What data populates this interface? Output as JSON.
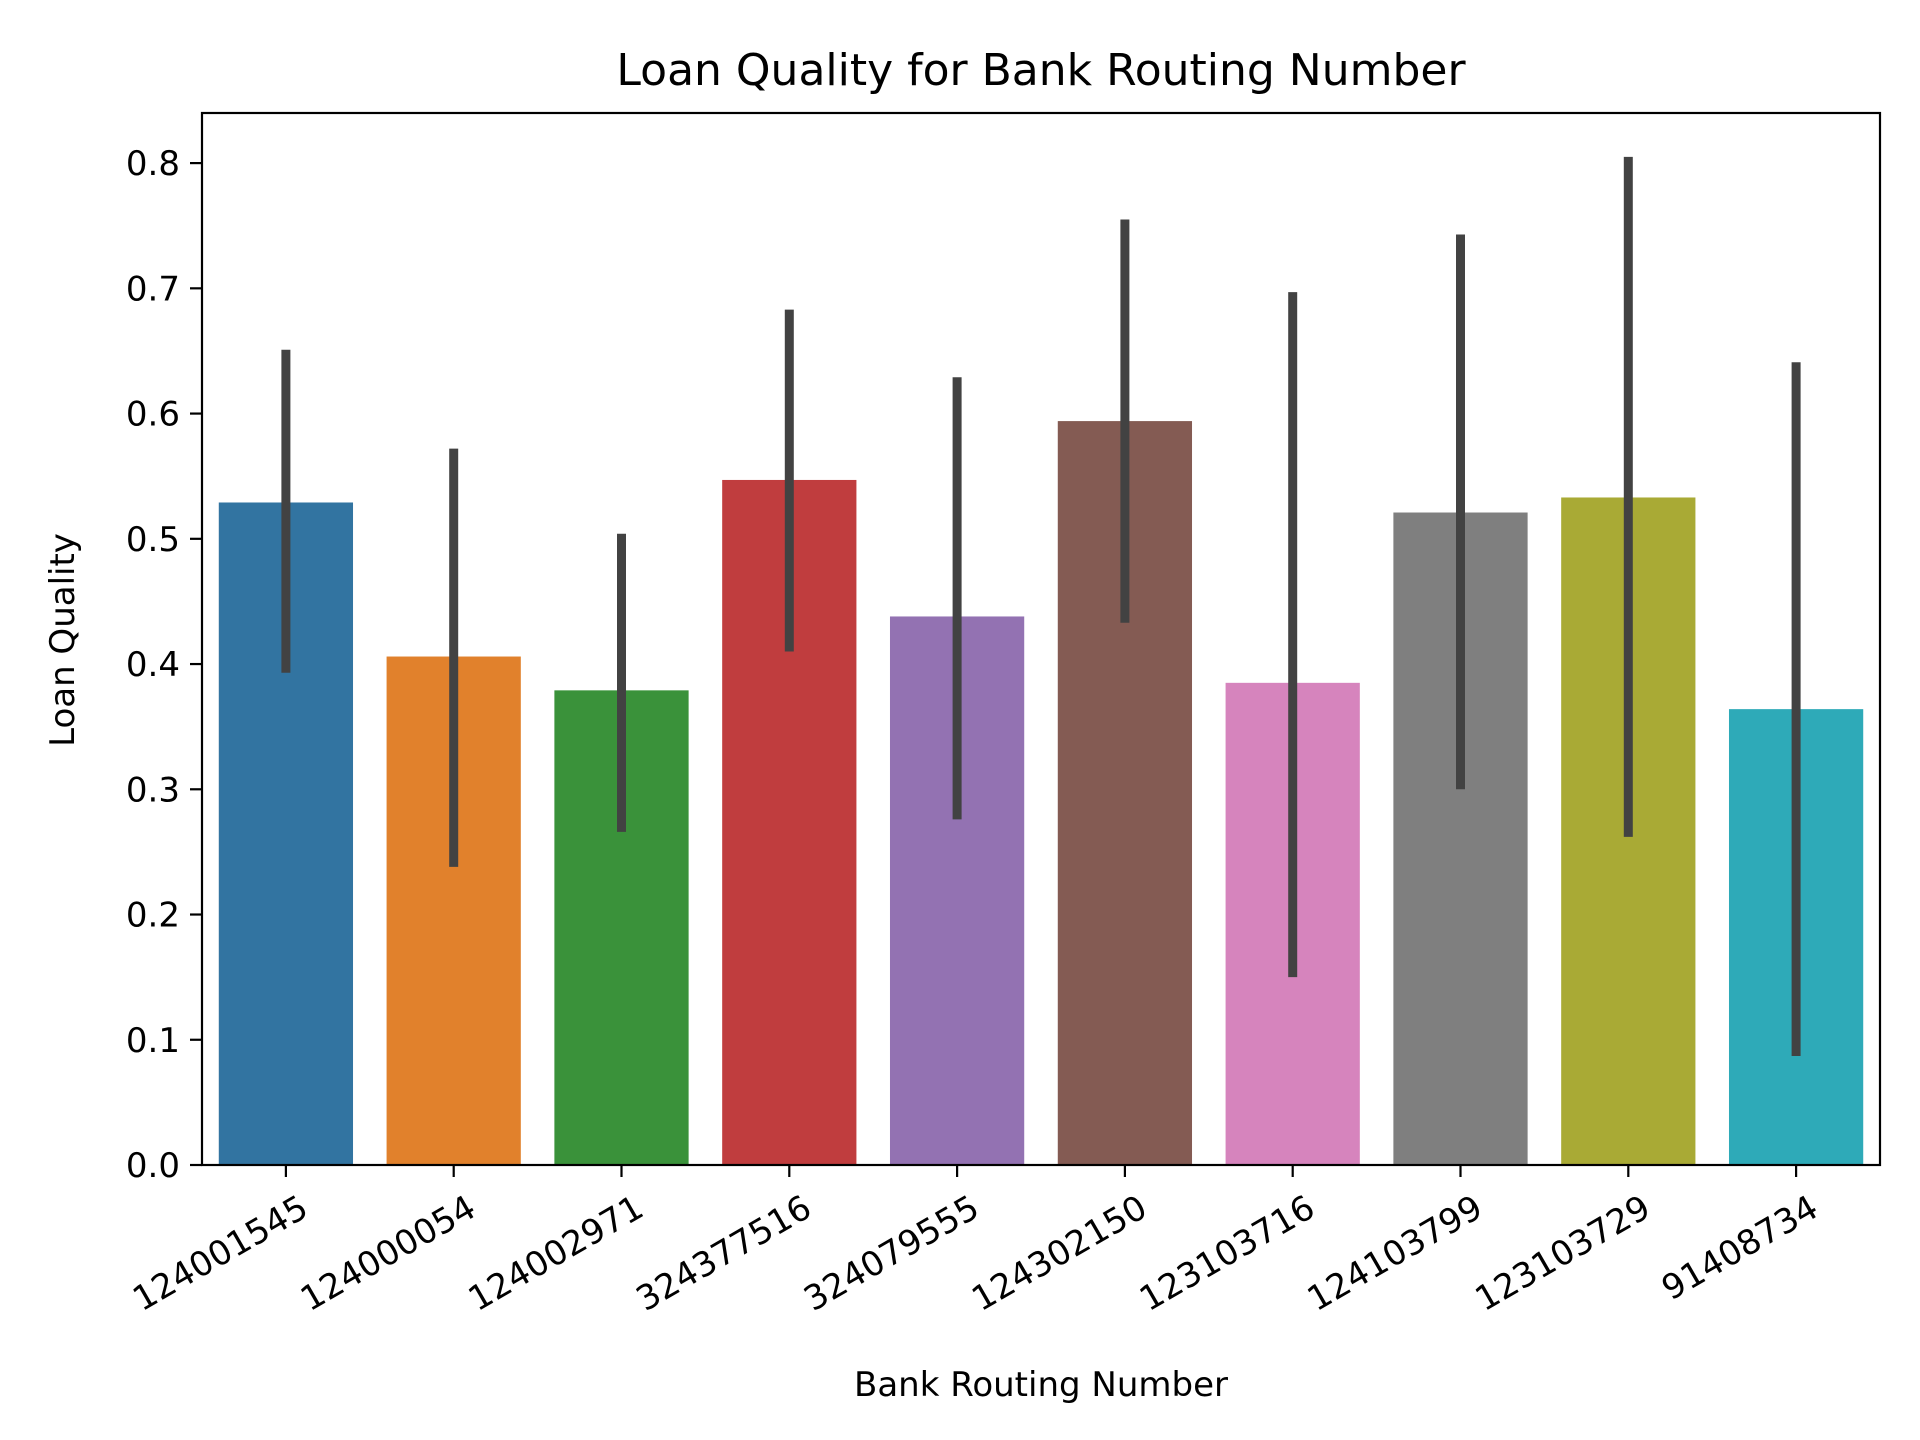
{
  "chart_data": {
    "type": "bar",
    "title": "Loan Quality for Bank Routing Number",
    "xlabel": "Bank Routing Number",
    "ylabel": "Loan Quality",
    "categories": [
      "124001545",
      "124000054",
      "124002971",
      "324377516",
      "324079555",
      "124302150",
      "123103716",
      "124103799",
      "123103729",
      "91408734"
    ],
    "values": [
      0.529,
      0.406,
      0.379,
      0.547,
      0.438,
      0.594,
      0.385,
      0.521,
      0.533,
      0.364
    ],
    "error_low": [
      0.393,
      0.238,
      0.266,
      0.41,
      0.276,
      0.433,
      0.15,
      0.3,
      0.262,
      0.087
    ],
    "error_high": [
      0.651,
      0.572,
      0.504,
      0.683,
      0.629,
      0.755,
      0.697,
      0.743,
      0.805,
      0.641
    ],
    "colors": [
      "#3274a1",
      "#e1812c",
      "#3a923a",
      "#c03d3e",
      "#9372b2",
      "#845b53",
      "#d684bd",
      "#7f7f7f",
      "#a9aa35",
      "#2eaab8"
    ],
    "error_color": "#424242",
    "ylim": [
      0,
      0.84
    ],
    "yticks": [
      "0.0",
      "0.1",
      "0.2",
      "0.3",
      "0.4",
      "0.5",
      "0.6",
      "0.7",
      "0.8"
    ],
    "xtick_rotation_deg": 30,
    "grid": false,
    "legend": "none"
  }
}
